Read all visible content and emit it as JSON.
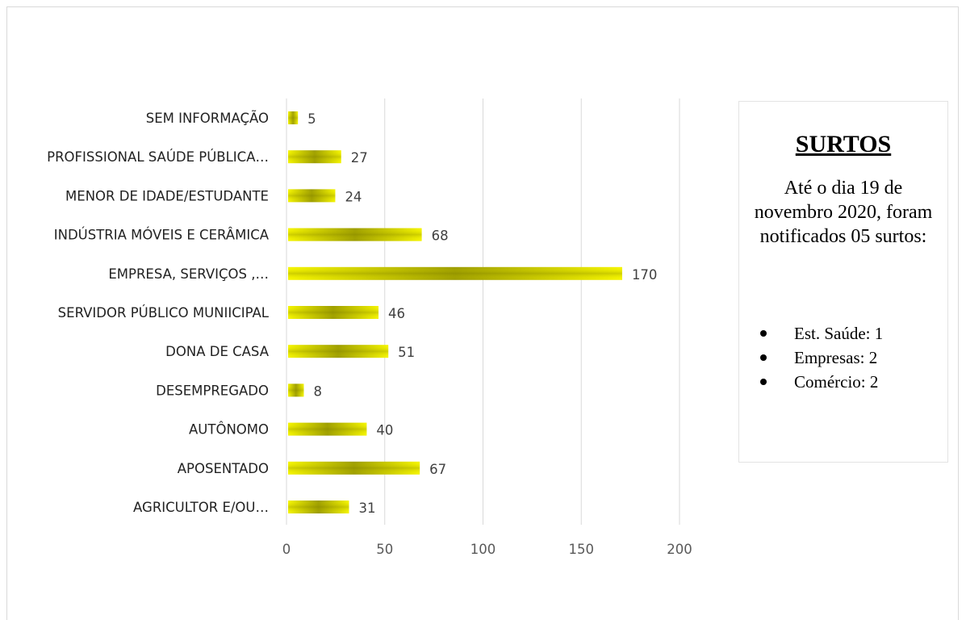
{
  "chart_data": {
    "type": "bar",
    "orientation": "horizontal",
    "categories": [
      "SEM  INFORMAÇÃO",
      "PROFISSIONAL SAÚDE PÚBLICA…",
      "MENOR DE IDADE/ESTUDANTE",
      "INDÚSTRIA MÓVEIS E CERÂMICA",
      "EMPRESA, SERVIÇOS ,…",
      "SERVIDOR PÚBLICO MUNIICIPAL",
      "DONA DE CASA",
      "DESEMPREGADO",
      "AUTÔNOMO",
      "APOSENTADO",
      "AGRICULTOR E/OU…"
    ],
    "values": [
      5,
      27,
      24,
      68,
      170,
      46,
      51,
      8,
      40,
      67,
      31
    ],
    "data_labels": [
      "5",
      "27",
      "24",
      "68",
      "170",
      "46",
      "51",
      "8",
      "40",
      "67",
      "31"
    ],
    "xlim": [
      0,
      200
    ],
    "xticks": [
      "0",
      "50",
      "100",
      "150",
      "200"
    ],
    "grid": true,
    "bar_colors": {
      "edge": "#f5f500",
      "center": "#9a9a00"
    }
  },
  "side_panel": {
    "title": "SURTOS",
    "text": "Até o dia 19 de novembro 2020, foram notificados 05 surtos:",
    "items": [
      "Est. Saúde: 1",
      "Empresas: 2",
      "Comércio: 2"
    ]
  }
}
